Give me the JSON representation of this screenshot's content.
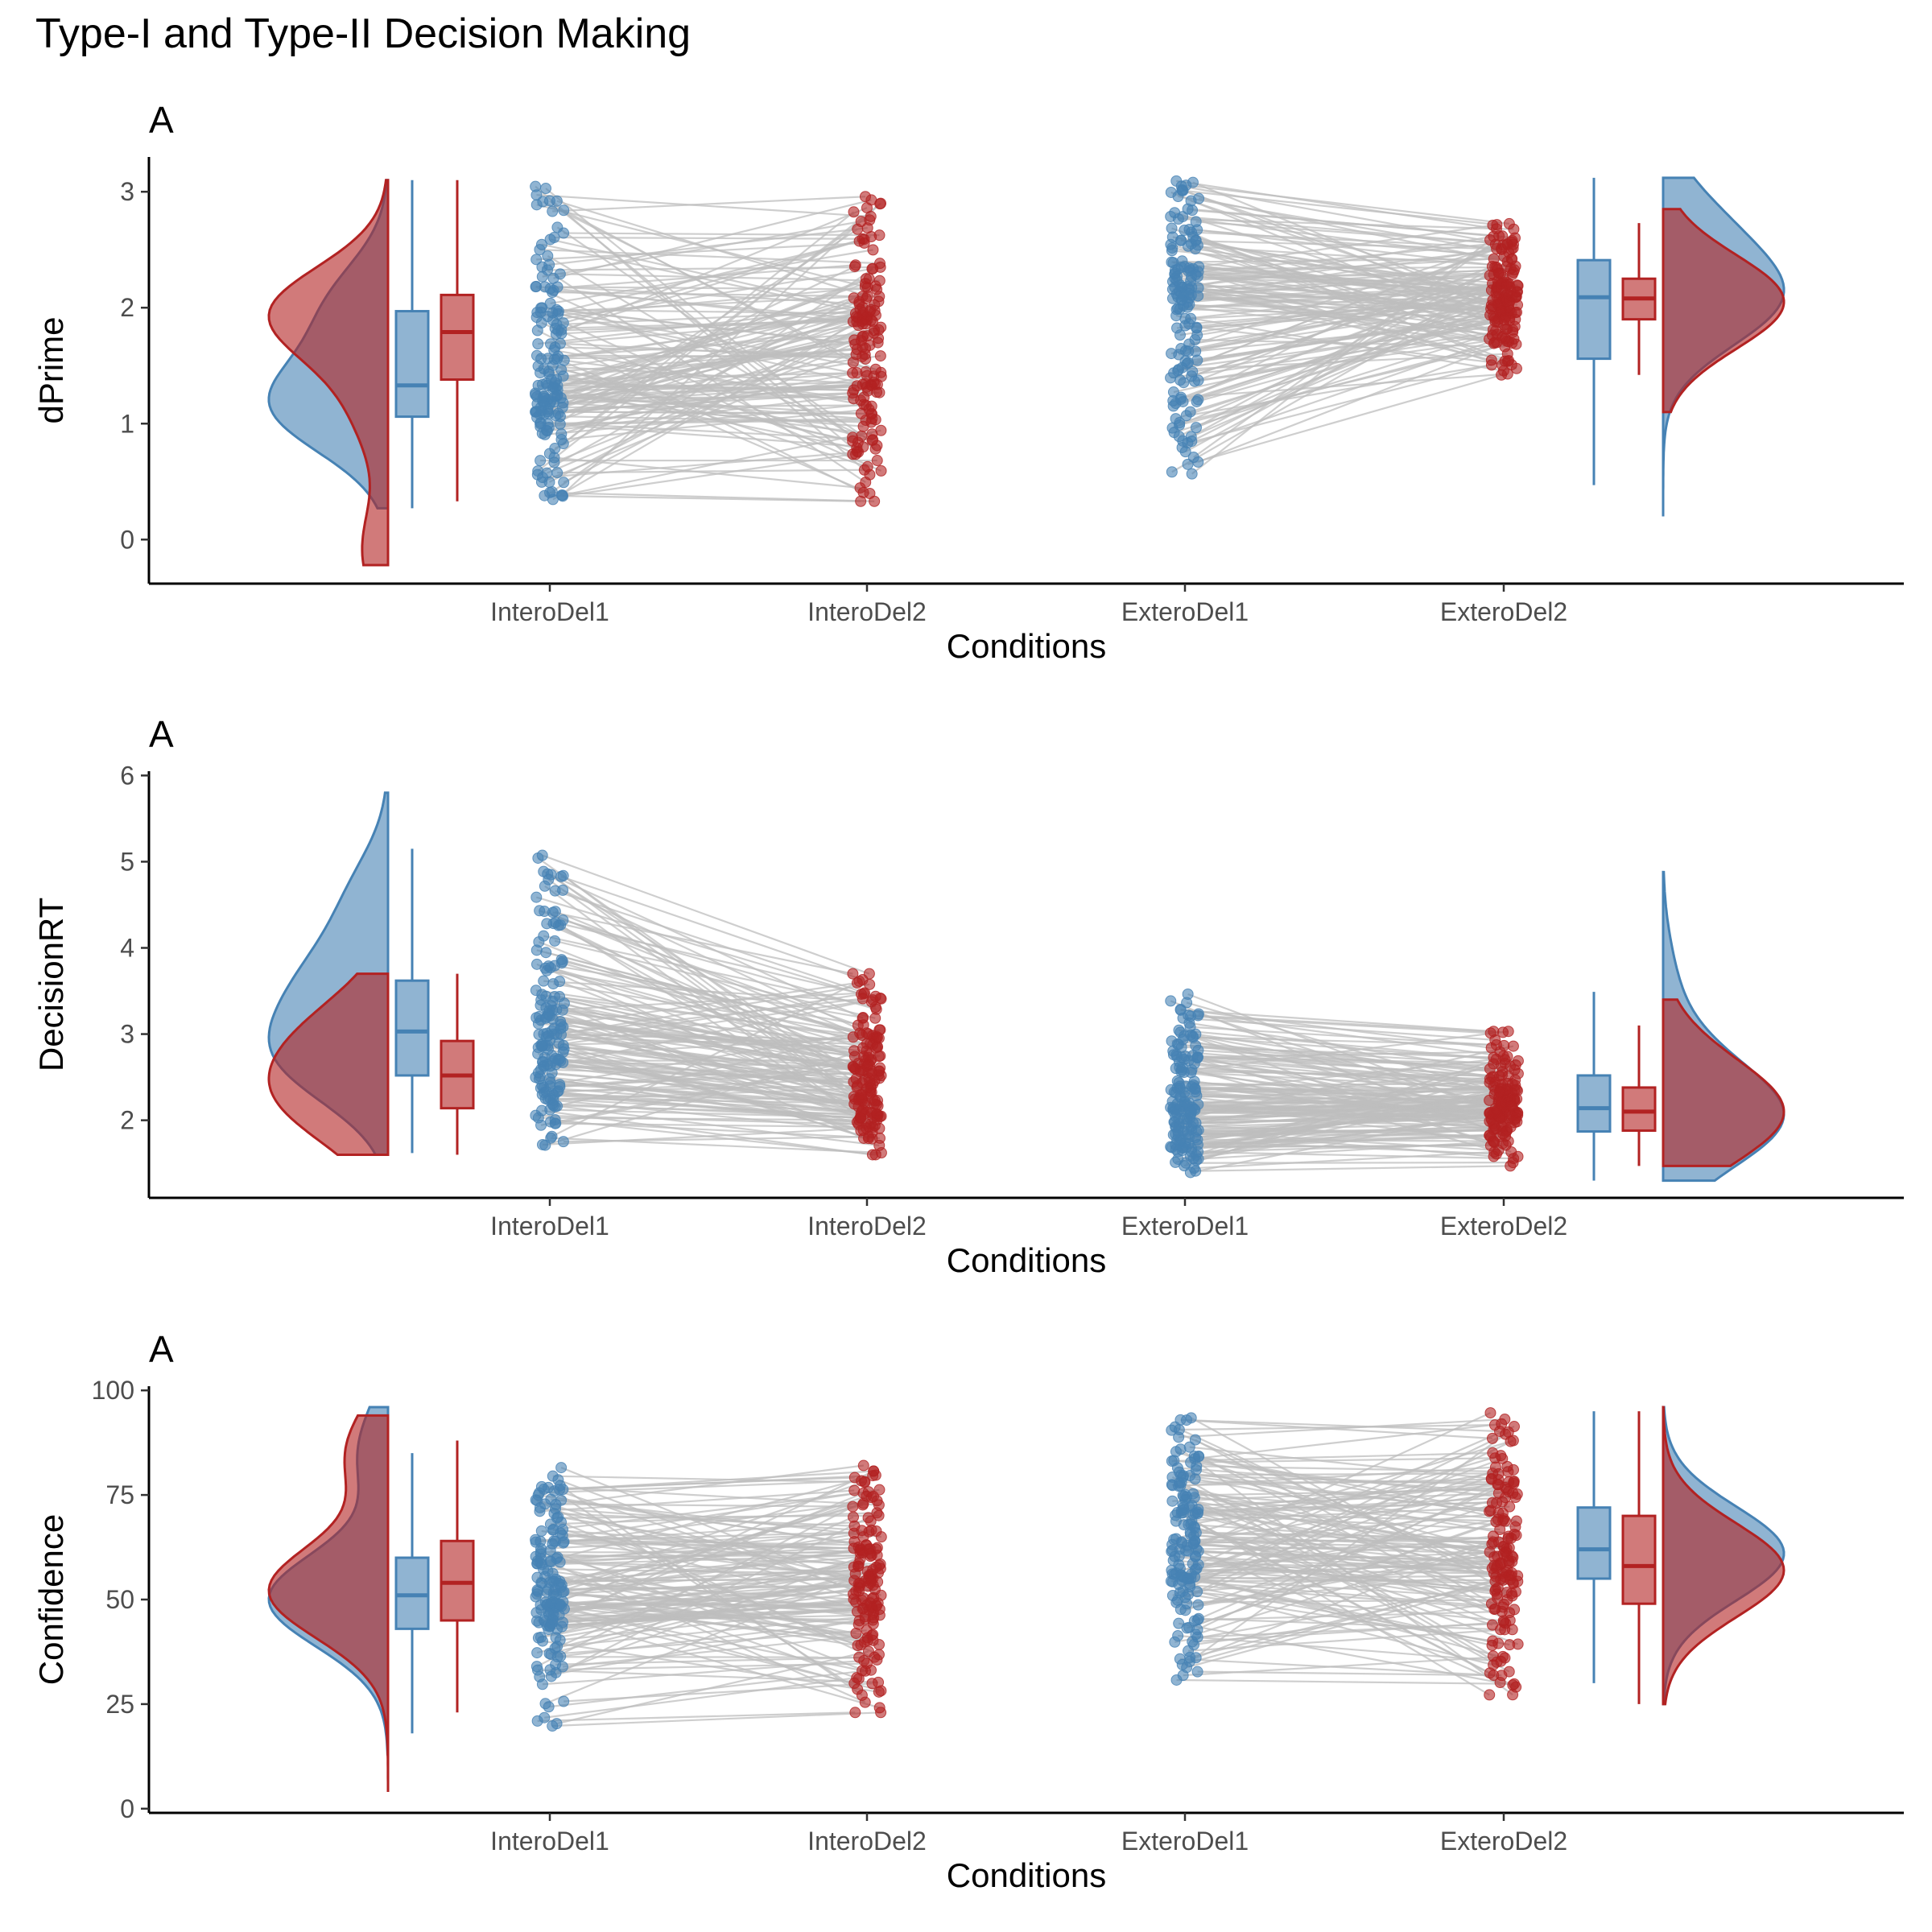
{
  "title": "Type-I and Type-II Decision Making",
  "colors": {
    "blue": "#4682b4",
    "red": "#b22222",
    "line": "#bdbdbd"
  },
  "chart_data": [
    {
      "type": "raincloud",
      "panel_tag": "A",
      "xlabel": "Conditions",
      "ylabel": "dPrime",
      "categories": [
        "InteroDel1",
        "InteroDel2",
        "ExteroDel1",
        "ExteroDel2"
      ],
      "ylim": [
        -0.38,
        3.3
      ],
      "yticks": [
        0,
        1,
        2,
        3
      ],
      "grid": false,
      "boxplots": {
        "intero": [
          {
            "condition": "InteroDel1",
            "min": 0.27,
            "q1": 1.06,
            "median": 1.33,
            "q3": 1.97,
            "max": 3.1
          },
          {
            "condition": "InteroDel2",
            "min": 0.33,
            "q1": 1.38,
            "median": 1.79,
            "q3": 2.11,
            "max": 3.1
          }
        ],
        "extero": [
          {
            "condition": "ExteroDel1",
            "min": 0.47,
            "q1": 1.56,
            "median": 2.09,
            "q3": 2.41,
            "max": 3.12
          },
          {
            "condition": "ExteroDel2",
            "min": 1.42,
            "q1": 1.9,
            "median": 2.08,
            "q3": 2.25,
            "max": 2.73
          }
        ]
      },
      "densities": {
        "intero": [
          {
            "condition": "InteroDel1",
            "range": [
              0.27,
              3.1
            ],
            "peaks": [
              [
                1.15,
                1.0
              ],
              [
                2.0,
                0.5
              ]
            ]
          },
          {
            "condition": "InteroDel2",
            "range": [
              -0.22,
              3.1
            ],
            "peaks": [
              [
                1.95,
                1.0
              ],
              [
                1.1,
                0.25
              ],
              [
                -0.1,
                0.22
              ]
            ]
          }
        ],
        "extero": [
          {
            "condition": "ExteroDel1",
            "range": [
              0.2,
              3.12
            ],
            "peaks": [
              [
                2.05,
                1.0
              ],
              [
                2.7,
                0.45
              ]
            ]
          },
          {
            "condition": "ExteroDel2",
            "range": [
              1.1,
              2.85
            ],
            "peaks": [
              [
                2.05,
                1.0
              ]
            ]
          }
        ]
      }
    },
    {
      "type": "raincloud",
      "panel_tag": "A",
      "xlabel": "Conditions",
      "ylabel": "DecisionRT",
      "categories": [
        "InteroDel1",
        "InteroDel2",
        "ExteroDel1",
        "ExteroDel2"
      ],
      "ylim": [
        1.1,
        6.05
      ],
      "yticks": [
        2,
        3,
        4,
        5,
        6
      ],
      "grid": false,
      "boxplots": {
        "intero": [
          {
            "condition": "InteroDel1",
            "min": 1.62,
            "q1": 2.52,
            "median": 3.03,
            "q3": 3.62,
            "max": 5.15
          },
          {
            "condition": "InteroDel2",
            "min": 1.6,
            "q1": 2.14,
            "median": 2.52,
            "q3": 2.92,
            "max": 3.7
          }
        ],
        "extero": [
          {
            "condition": "ExteroDel1",
            "min": 1.3,
            "q1": 1.87,
            "median": 2.14,
            "q3": 2.52,
            "max": 3.49
          },
          {
            "condition": "ExteroDel2",
            "min": 1.47,
            "q1": 1.88,
            "median": 2.1,
            "q3": 2.38,
            "max": 3.1
          }
        ]
      },
      "densities": {
        "intero": [
          {
            "condition": "InteroDel1",
            "range": [
              1.6,
              5.8
            ],
            "peaks": [
              [
                2.7,
                1.0
              ],
              [
                3.6,
                0.7
              ],
              [
                4.6,
                0.35
              ]
            ]
          },
          {
            "condition": "InteroDel2",
            "range": [
              1.6,
              3.7
            ],
            "peaks": [
              [
                2.2,
                1.0
              ],
              [
                3.0,
                0.75
              ]
            ]
          }
        ],
        "extero": [
          {
            "condition": "ExteroDel1",
            "range": [
              1.3,
              4.88
            ],
            "peaks": [
              [
                1.95,
                1.0
              ],
              [
                2.6,
                0.35
              ],
              [
                3.6,
                0.1
              ]
            ]
          },
          {
            "condition": "ExteroDel2",
            "range": [
              1.47,
              3.4
            ],
            "peaks": [
              [
                2.0,
                1.0
              ],
              [
                2.6,
                0.3
              ]
            ]
          }
        ]
      }
    },
    {
      "type": "raincloud",
      "panel_tag": "A",
      "xlabel": "Conditions",
      "ylabel": "Confidence",
      "categories": [
        "InteroDel1",
        "InteroDel2",
        "ExteroDel1",
        "ExteroDel2"
      ],
      "ylim": [
        -1,
        101
      ],
      "yticks": [
        0,
        25,
        50,
        75,
        100
      ],
      "grid": false,
      "boxplots": {
        "intero": [
          {
            "condition": "InteroDel1",
            "min": 18,
            "q1": 43,
            "median": 51,
            "q3": 60,
            "max": 85
          },
          {
            "condition": "InteroDel2",
            "min": 23,
            "q1": 45,
            "median": 54,
            "q3": 64,
            "max": 88
          }
        ],
        "extero": [
          {
            "condition": "ExteroDel1",
            "min": 30,
            "q1": 55,
            "median": 62,
            "q3": 72,
            "max": 95
          },
          {
            "condition": "ExteroDel2",
            "min": 25,
            "q1": 49,
            "median": 58,
            "q3": 70,
            "max": 95
          }
        ]
      },
      "densities": {
        "intero": [
          {
            "condition": "InteroDel1",
            "range": [
              13,
              96
            ],
            "peaks": [
              [
                50,
                1.0
              ],
              [
                85,
                0.25
              ]
            ]
          },
          {
            "condition": "InteroDel2",
            "range": [
              4,
              94
            ],
            "peaks": [
              [
                52,
                1.0
              ],
              [
                85,
                0.35
              ]
            ]
          }
        ],
        "extero": [
          {
            "condition": "ExteroDel1",
            "range": [
              25,
              96
            ],
            "peaks": [
              [
                61,
                1.0
              ]
            ]
          },
          {
            "condition": "ExteroDel2",
            "range": [
              25,
              96
            ],
            "peaks": [
              [
                57,
                1.0
              ]
            ]
          }
        ]
      }
    }
  ]
}
